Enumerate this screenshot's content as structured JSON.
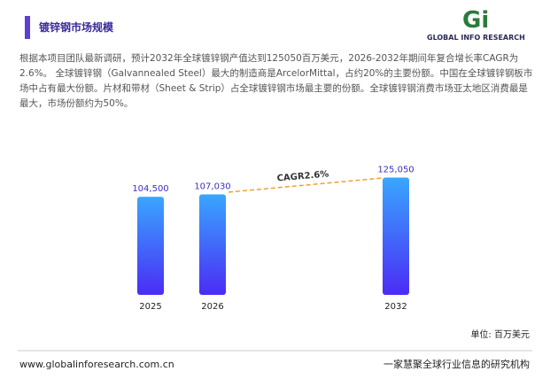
{
  "header": {
    "title": "镀锌钢市场规模",
    "logo": "GLOBAL INFO RESEARCH"
  },
  "intro": "根据本项目团队最新调研，预计2032年全球镀锌钢产值达到125050百万美元，2026-2032年期间年复合增长率CAGR为2.6%。 全球镀锌钢（Galvannealed Steel）最大的制造商是ArcelorMittal，占约20%的主要份额。中国在全球镀锌钢板市场中占有最大份额。片材和带材（Sheet & Strip）占全球镀锌钢市场最主要的份额。全球镀锌钢消费市场亚太地区消费最是最大，市场份额约为50%。",
  "chart_data": {
    "type": "bar",
    "categories": [
      "2025",
      "2026",
      "2032"
    ],
    "values": [
      104500,
      107030,
      125050
    ],
    "value_labels": [
      "104,500",
      "107,030",
      "125,050"
    ],
    "ylim": [
      0,
      150000
    ],
    "color": "#3d3bf5",
    "annotation": "CAGR2.6%",
    "unit_label": "单位: 百万美元"
  },
  "footer": {
    "website": "www.globalinforesearch.com.cn",
    "slogan": "一家慧聚全球行业信息的研究机构"
  }
}
